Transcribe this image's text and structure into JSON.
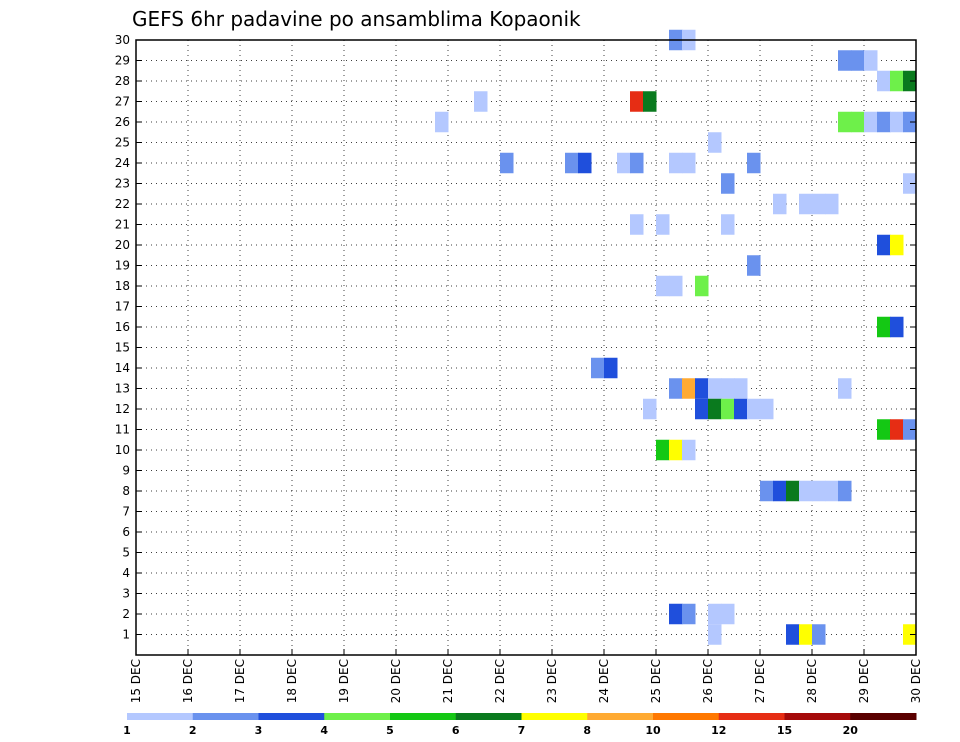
{
  "chart_data": {
    "type": "heatmap",
    "title": "GEFS 6hr padavine po ansamblima Kopaonik",
    "x_tick_labels": [
      "15 DEC",
      "16 DEC",
      "17 DEC",
      "18 DEC",
      "19 DEC",
      "20 DEC",
      "21 DEC",
      "22 DEC",
      "23 DEC",
      "24 DEC",
      "25 DEC",
      "26 DEC",
      "27 DEC",
      "28 DEC",
      "29 DEC",
      "30 DEC"
    ],
    "y_tick_labels": [
      "1",
      "2",
      "3",
      "4",
      "5",
      "6",
      "7",
      "8",
      "9",
      "10",
      "11",
      "12",
      "13",
      "14",
      "15",
      "16",
      "17",
      "18",
      "19",
      "20",
      "21",
      "22",
      "23",
      "24",
      "25",
      "26",
      "27",
      "28",
      "29",
      "30"
    ],
    "xlim_days": [
      15,
      30
    ],
    "ylim_members": [
      0,
      30
    ],
    "grid": true,
    "colorbar": {
      "labels": [
        "1",
        "2",
        "3",
        "4",
        "5",
        "6",
        "7",
        "8",
        "10",
        "12",
        "15",
        "20"
      ],
      "colors": [
        "#b4c8ff",
        "#6a92ee",
        "#1f4fdc",
        "#6ef04a",
        "#14c814",
        "#0a7a1e",
        "#ffff00",
        "#ffaa32",
        "#ff7800",
        "#e62d14",
        "#a50a0a",
        "#5a0000"
      ]
    },
    "cells": [
      {
        "m": 30,
        "t": 25.25,
        "l": 2
      },
      {
        "m": 30,
        "t": 25.5,
        "l": 1
      },
      {
        "m": 29,
        "t": 28.5,
        "l": 2
      },
      {
        "m": 29,
        "t": 28.75,
        "l": 2
      },
      {
        "m": 29,
        "t": 29.0,
        "l": 1
      },
      {
        "m": 28,
        "t": 29.25,
        "l": 1
      },
      {
        "m": 28,
        "t": 29.5,
        "l": 4
      },
      {
        "m": 28,
        "t": 29.75,
        "l": 6
      },
      {
        "m": 27,
        "t": 21.5,
        "l": 1
      },
      {
        "m": 27,
        "t": 24.5,
        "l": 10
      },
      {
        "m": 27,
        "t": 24.75,
        "l": 6
      },
      {
        "m": 26,
        "t": 20.75,
        "l": 1
      },
      {
        "m": 26,
        "t": 28.5,
        "l": 4
      },
      {
        "m": 26,
        "t": 28.75,
        "l": 4
      },
      {
        "m": 26,
        "t": 29.0,
        "l": 1
      },
      {
        "m": 26,
        "t": 29.25,
        "l": 2
      },
      {
        "m": 26,
        "t": 29.5,
        "l": 1
      },
      {
        "m": 26,
        "t": 29.75,
        "l": 2
      },
      {
        "m": 25,
        "t": 26.0,
        "l": 1
      },
      {
        "m": 24,
        "t": 22.0,
        "l": 2
      },
      {
        "m": 24,
        "t": 23.25,
        "l": 2
      },
      {
        "m": 24,
        "t": 23.5,
        "l": 3
      },
      {
        "m": 24,
        "t": 24.25,
        "l": 1
      },
      {
        "m": 24,
        "t": 24.5,
        "l": 2
      },
      {
        "m": 24,
        "t": 25.25,
        "l": 1
      },
      {
        "m": 24,
        "t": 25.5,
        "l": 1
      },
      {
        "m": 24,
        "t": 26.75,
        "l": 2
      },
      {
        "m": 23,
        "t": 26.25,
        "l": 2
      },
      {
        "m": 23,
        "t": 29.75,
        "l": 1
      },
      {
        "m": 22,
        "t": 27.25,
        "l": 1
      },
      {
        "m": 22,
        "t": 27.75,
        "l": 1
      },
      {
        "m": 22,
        "t": 28.0,
        "l": 1
      },
      {
        "m": 22,
        "t": 28.25,
        "l": 1
      },
      {
        "m": 21,
        "t": 24.5,
        "l": 1
      },
      {
        "m": 21,
        "t": 25.0,
        "l": 1
      },
      {
        "m": 21,
        "t": 26.25,
        "l": 1
      },
      {
        "m": 20,
        "t": 29.25,
        "l": 3
      },
      {
        "m": 20,
        "t": 29.5,
        "l": 7
      },
      {
        "m": 19,
        "t": 26.75,
        "l": 2
      },
      {
        "m": 18,
        "t": 25.0,
        "l": 1
      },
      {
        "m": 18,
        "t": 25.25,
        "l": 1
      },
      {
        "m": 18,
        "t": 25.75,
        "l": 4
      },
      {
        "m": 16,
        "t": 29.25,
        "l": 5
      },
      {
        "m": 16,
        "t": 29.5,
        "l": 3
      },
      {
        "m": 14,
        "t": 23.75,
        "l": 2
      },
      {
        "m": 14,
        "t": 24.0,
        "l": 3
      },
      {
        "m": 13,
        "t": 25.25,
        "l": 2
      },
      {
        "m": 13,
        "t": 25.5,
        "l": 8
      },
      {
        "m": 13,
        "t": 25.75,
        "l": 3
      },
      {
        "m": 13,
        "t": 26.0,
        "l": 1
      },
      {
        "m": 13,
        "t": 26.25,
        "l": 1
      },
      {
        "m": 13,
        "t": 26.5,
        "l": 1
      },
      {
        "m": 13,
        "t": 28.5,
        "l": 1
      },
      {
        "m": 12,
        "t": 24.75,
        "l": 1
      },
      {
        "m": 12,
        "t": 25.75,
        "l": 3
      },
      {
        "m": 12,
        "t": 26.0,
        "l": 6
      },
      {
        "m": 12,
        "t": 26.25,
        "l": 4
      },
      {
        "m": 12,
        "t": 26.5,
        "l": 3
      },
      {
        "m": 12,
        "t": 26.75,
        "l": 1
      },
      {
        "m": 12,
        "t": 27.0,
        "l": 1
      },
      {
        "m": 11,
        "t": 29.25,
        "l": 5
      },
      {
        "m": 11,
        "t": 29.5,
        "l": 10
      },
      {
        "m": 11,
        "t": 29.75,
        "l": 2
      },
      {
        "m": 10,
        "t": 25.0,
        "l": 5
      },
      {
        "m": 10,
        "t": 25.25,
        "l": 7
      },
      {
        "m": 10,
        "t": 25.5,
        "l": 1
      },
      {
        "m": 8,
        "t": 27.0,
        "l": 2
      },
      {
        "m": 8,
        "t": 27.25,
        "l": 3
      },
      {
        "m": 8,
        "t": 27.5,
        "l": 6
      },
      {
        "m": 8,
        "t": 27.75,
        "l": 1
      },
      {
        "m": 8,
        "t": 28.0,
        "l": 1
      },
      {
        "m": 8,
        "t": 28.25,
        "l": 1
      },
      {
        "m": 8,
        "t": 28.5,
        "l": 2
      },
      {
        "m": 2,
        "t": 25.25,
        "l": 3
      },
      {
        "m": 2,
        "t": 25.5,
        "l": 2
      },
      {
        "m": 2,
        "t": 26.0,
        "l": 1
      },
      {
        "m": 2,
        "t": 26.25,
        "l": 1
      },
      {
        "m": 1,
        "t": 26.0,
        "l": 1
      },
      {
        "m": 1,
        "t": 27.5,
        "l": 3
      },
      {
        "m": 1,
        "t": 27.75,
        "l": 7
      },
      {
        "m": 1,
        "t": 28.0,
        "l": 2
      },
      {
        "m": 1,
        "t": 29.75,
        "l": 7
      }
    ]
  }
}
